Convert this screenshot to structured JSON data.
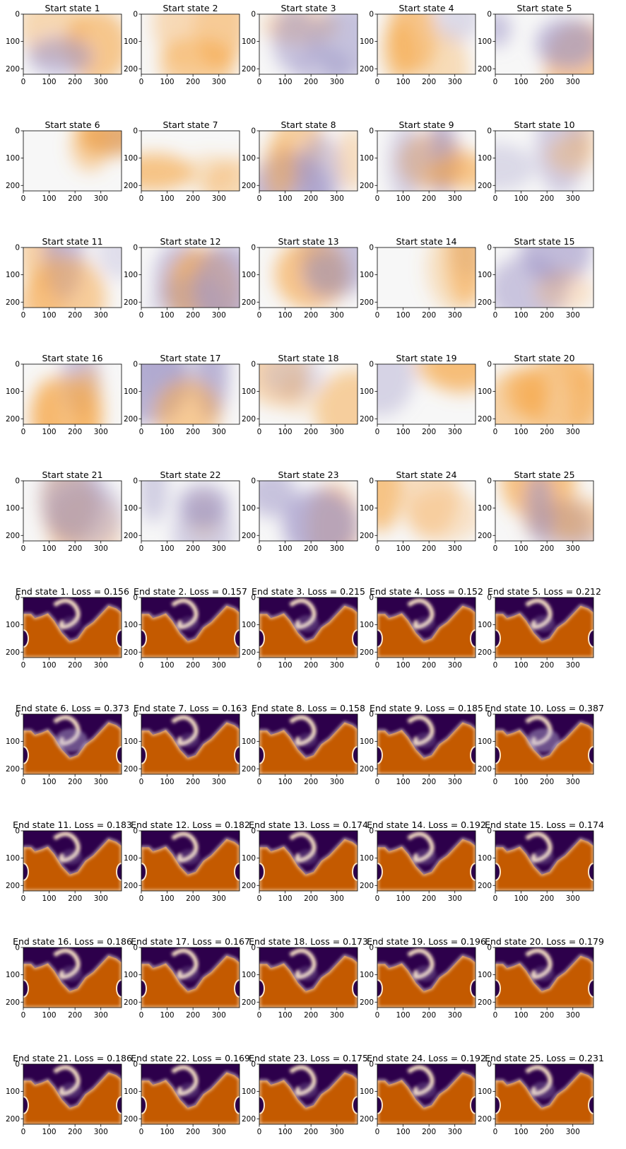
{
  "figure": {
    "colormap": "PuOr",
    "colors": {
      "orange": "#c45a00",
      "purple": "#2d004b",
      "white": "#f7f7f7"
    }
  },
  "chart_data": {
    "type": "heatmap",
    "layout": "10 rows x 5 columns of image panels",
    "xticks": [
      "0",
      "100",
      "200",
      "300"
    ],
    "yticks": [
      "0",
      "100",
      "200"
    ],
    "xlim": [
      0,
      380
    ],
    "ylim": [
      220,
      0
    ],
    "start_states": [
      {
        "title": "Start state 1"
      },
      {
        "title": "Start state 2"
      },
      {
        "title": "Start state 3"
      },
      {
        "title": "Start state 4"
      },
      {
        "title": "Start state 5"
      },
      {
        "title": "Start state 6"
      },
      {
        "title": "Start state 7"
      },
      {
        "title": "Start state 8"
      },
      {
        "title": "Start state 9"
      },
      {
        "title": "Start state 10"
      },
      {
        "title": "Start state 11"
      },
      {
        "title": "Start state 12"
      },
      {
        "title": "Start state 13"
      },
      {
        "title": "Start state 14"
      },
      {
        "title": "Start state 15"
      },
      {
        "title": "Start state 16"
      },
      {
        "title": "Start state 17"
      },
      {
        "title": "Start state 18"
      },
      {
        "title": "Start state 19"
      },
      {
        "title": "Start state 20"
      },
      {
        "title": "Start state 21"
      },
      {
        "title": "Start state 22"
      },
      {
        "title": "Start state 23"
      },
      {
        "title": "Start state 24"
      },
      {
        "title": "Start state 25"
      }
    ],
    "end_states": [
      {
        "title": "End state 1. Loss = 0.156",
        "state": 1,
        "loss": 0.156
      },
      {
        "title": "End state 2. Loss = 0.157",
        "state": 2,
        "loss": 0.157
      },
      {
        "title": "End state 3. Loss = 0.215",
        "state": 3,
        "loss": 0.215
      },
      {
        "title": "End state 4. Loss = 0.152",
        "state": 4,
        "loss": 0.152
      },
      {
        "title": "End state 5. Loss = 0.212",
        "state": 5,
        "loss": 0.212
      },
      {
        "title": "End state 6. Loss = 0.373",
        "state": 6,
        "loss": 0.373
      },
      {
        "title": "End state 7. Loss = 0.163",
        "state": 7,
        "loss": 0.163
      },
      {
        "title": "End state 8. Loss = 0.158",
        "state": 8,
        "loss": 0.158
      },
      {
        "title": "End state 9. Loss = 0.185",
        "state": 9,
        "loss": 0.185
      },
      {
        "title": "End state 10. Loss = 0.387",
        "state": 10,
        "loss": 0.387
      },
      {
        "title": "End state 11. Loss = 0.183",
        "state": 11,
        "loss": 0.183
      },
      {
        "title": "End state 12. Loss = 0.182",
        "state": 12,
        "loss": 0.182
      },
      {
        "title": "End state 13. Loss = 0.174",
        "state": 13,
        "loss": 0.174
      },
      {
        "title": "End state 14. Loss = 0.192",
        "state": 14,
        "loss": 0.192
      },
      {
        "title": "End state 15. Loss = 0.174",
        "state": 15,
        "loss": 0.174
      },
      {
        "title": "End state 16. Loss = 0.186",
        "state": 16,
        "loss": 0.186
      },
      {
        "title": "End state 17. Loss = 0.167",
        "state": 17,
        "loss": 0.167
      },
      {
        "title": "End state 18. Loss = 0.173",
        "state": 18,
        "loss": 0.173
      },
      {
        "title": "End state 19. Loss = 0.196",
        "state": 19,
        "loss": 0.196
      },
      {
        "title": "End state 20. Loss = 0.179",
        "state": 20,
        "loss": 0.179
      },
      {
        "title": "End state 21. Loss = 0.186",
        "state": 21,
        "loss": 0.186
      },
      {
        "title": "End state 22. Loss = 0.169",
        "state": 22,
        "loss": 0.169
      },
      {
        "title": "End state 23. Loss = 0.175",
        "state": 23,
        "loss": 0.175
      },
      {
        "title": "End state 24. Loss = 0.192",
        "state": 24,
        "loss": 0.192
      },
      {
        "title": "End state 25. Loss = 0.231",
        "state": 25,
        "loss": 0.231
      }
    ]
  }
}
